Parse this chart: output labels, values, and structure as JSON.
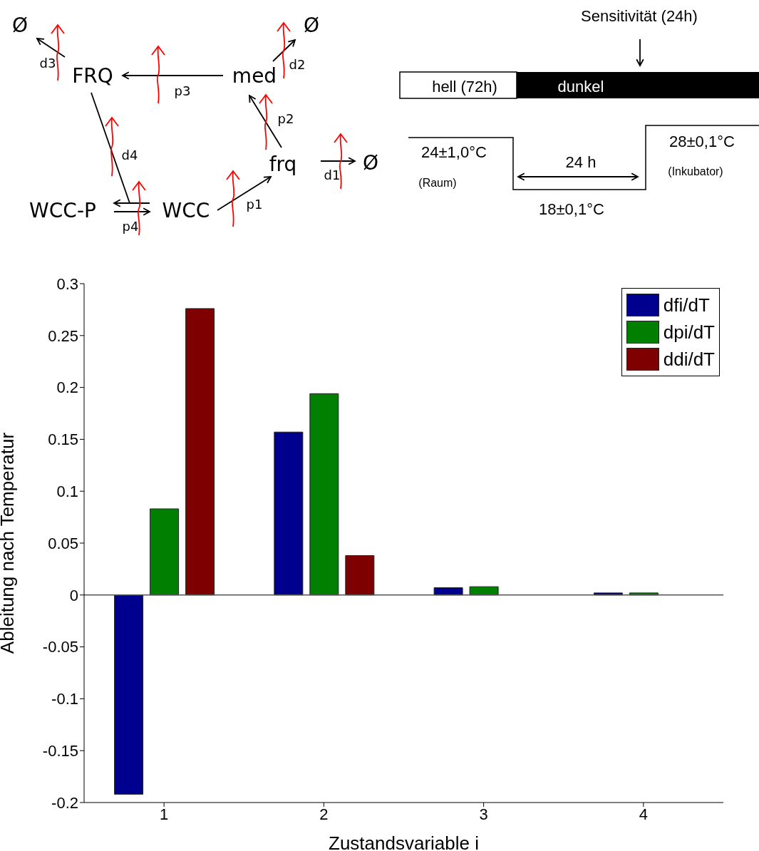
{
  "chart_data": [
    {
      "type": "other",
      "annotations": [
        "Ø",
        "Ø",
        "Ø",
        "FRQ",
        "med",
        "frq",
        "WCC-P",
        "WCC",
        "d1",
        "d2",
        "d3",
        "d4",
        "p1",
        "p2",
        "p3",
        "p4"
      ]
    },
    {
      "type": "other",
      "annotations": [
        "Sensitivität (24h)",
        "hell (72h)",
        "dunkel",
        "24±1,0°C",
        "(Raum)",
        "24 h",
        "18±0,1°C",
        "28±0,1°C",
        "(Inkubator)"
      ]
    },
    {
      "type": "bar",
      "xlabel": "Zustandsvariable i",
      "ylabel": "Ableitung nach Temperatur",
      "categories": [
        "1",
        "2",
        "3",
        "4"
      ],
      "series": [
        {
          "name": "dfi/dT",
          "color": "#00008f",
          "values": [
            -0.192,
            0.157,
            0.007,
            0.002
          ]
        },
        {
          "name": "dpi/dT",
          "color": "#007f00",
          "values": [
            0.083,
            0.194,
            0.008,
            0.002
          ]
        },
        {
          "name": "ddi/dT",
          "color": "#7f0000",
          "values": [
            0.276,
            0.038,
            null,
            null
          ]
        }
      ],
      "ylim": [
        -0.2,
        0.3
      ],
      "yticks": [
        -0.2,
        -0.15,
        -0.1,
        -0.05,
        0,
        0.05,
        0.1,
        0.15,
        0.2,
        0.25,
        0.3
      ],
      "ref_lines": [
        {
          "axis": "y",
          "value": 0,
          "color": "#555555"
        }
      ],
      "grid": false,
      "legend": "top right"
    }
  ]
}
